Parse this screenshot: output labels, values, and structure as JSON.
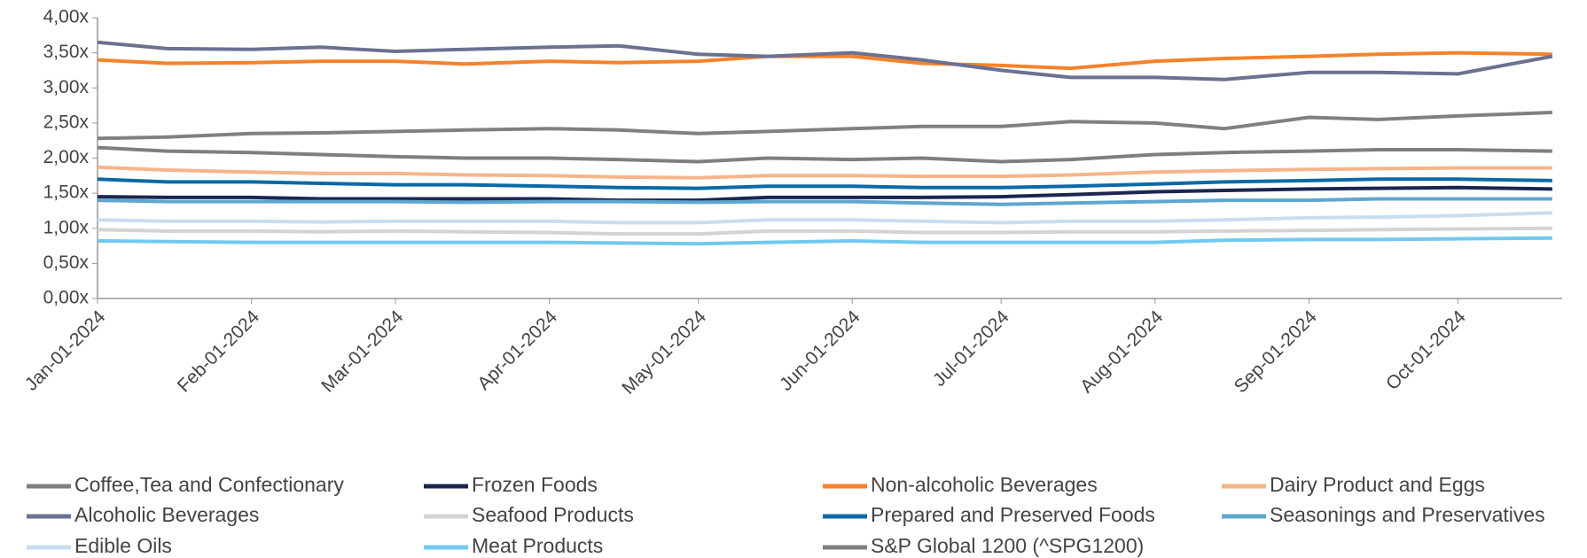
{
  "chart_data": {
    "type": "line",
    "x": [
      "2024-01-01",
      "2024-01-15",
      "2024-02-01",
      "2024-02-15",
      "2024-03-01",
      "2024-03-15",
      "2024-04-01",
      "2024-04-15",
      "2024-05-01",
      "2024-05-15",
      "2024-06-01",
      "2024-06-15",
      "2024-07-01",
      "2024-07-15",
      "2024-08-01",
      "2024-08-15",
      "2024-09-01",
      "2024-09-15",
      "2024-10-01",
      "2024-10-20"
    ],
    "series": [
      {
        "name": "Coffee,Tea and Confectionary",
        "color": "#7f7f7f",
        "values": [
          2.15,
          2.1,
          2.08,
          2.05,
          2.02,
          2.0,
          2.0,
          1.98,
          1.95,
          2.0,
          1.98,
          2.0,
          1.95,
          1.98,
          2.05,
          2.08,
          2.1,
          2.12,
          2.12,
          2.1
        ]
      },
      {
        "name": "Frozen Foods",
        "color": "#1b2650",
        "values": [
          1.45,
          1.44,
          1.44,
          1.42,
          1.42,
          1.42,
          1.42,
          1.4,
          1.4,
          1.44,
          1.44,
          1.44,
          1.45,
          1.48,
          1.52,
          1.54,
          1.56,
          1.57,
          1.58,
          1.56
        ]
      },
      {
        "name": "Non-alcoholic Beverages",
        "color": "#f5822a",
        "values": [
          3.4,
          3.35,
          3.36,
          3.38,
          3.38,
          3.34,
          3.38,
          3.36,
          3.38,
          3.45,
          3.45,
          3.35,
          3.32,
          3.28,
          3.38,
          3.42,
          3.45,
          3.48,
          3.5,
          3.48
        ]
      },
      {
        "name": " Dairy Product and Eggs",
        "color": "#f5b58a",
        "values": [
          1.87,
          1.83,
          1.8,
          1.78,
          1.78,
          1.76,
          1.75,
          1.73,
          1.72,
          1.75,
          1.75,
          1.74,
          1.74,
          1.76,
          1.8,
          1.82,
          1.84,
          1.85,
          1.86,
          1.86
        ]
      },
      {
        "name": "Alcoholic Beverages",
        "color": "#6b7190",
        "values": [
          3.65,
          3.56,
          3.55,
          3.58,
          3.52,
          3.55,
          3.58,
          3.6,
          3.48,
          3.45,
          3.5,
          3.4,
          3.25,
          3.15,
          3.15,
          3.12,
          3.22,
          3.22,
          3.2,
          3.45
        ]
      },
      {
        "name": "Seafood Products",
        "color": "#d3d3d3",
        "values": [
          0.98,
          0.96,
          0.96,
          0.95,
          0.96,
          0.95,
          0.94,
          0.92,
          0.92,
          0.96,
          0.96,
          0.94,
          0.94,
          0.95,
          0.95,
          0.96,
          0.97,
          0.98,
          0.99,
          1.0
        ]
      },
      {
        "name": "Prepared and Preserved Foods",
        "color": "#0b6aa5",
        "values": [
          1.7,
          1.66,
          1.66,
          1.64,
          1.62,
          1.62,
          1.6,
          1.58,
          1.57,
          1.6,
          1.6,
          1.58,
          1.58,
          1.6,
          1.63,
          1.66,
          1.68,
          1.7,
          1.7,
          1.68
        ]
      },
      {
        "name": "Seasonings and Preservatives",
        "color": "#5ea6cf",
        "values": [
          1.4,
          1.38,
          1.38,
          1.38,
          1.38,
          1.37,
          1.38,
          1.38,
          1.37,
          1.38,
          1.38,
          1.36,
          1.34,
          1.36,
          1.38,
          1.4,
          1.4,
          1.42,
          1.42,
          1.42
        ]
      },
      {
        "name": "Edible Oils",
        "color": "#c8deef",
        "values": [
          1.12,
          1.1,
          1.1,
          1.09,
          1.1,
          1.1,
          1.1,
          1.08,
          1.08,
          1.12,
          1.12,
          1.1,
          1.08,
          1.1,
          1.1,
          1.12,
          1.15,
          1.16,
          1.18,
          1.22
        ]
      },
      {
        "name": "Meat Products",
        "color": "#72c8f0",
        "values": [
          0.82,
          0.81,
          0.8,
          0.8,
          0.8,
          0.8,
          0.8,
          0.79,
          0.78,
          0.8,
          0.82,
          0.8,
          0.8,
          0.8,
          0.8,
          0.83,
          0.84,
          0.84,
          0.85,
          0.86
        ]
      },
      {
        "name": "S&P Global 1200 (^SPG1200)",
        "color": "#808080",
        "values": [
          2.28,
          2.3,
          2.35,
          2.36,
          2.38,
          2.4,
          2.42,
          2.4,
          2.35,
          2.38,
          2.42,
          2.45,
          2.45,
          2.52,
          2.5,
          2.42,
          2.58,
          2.55,
          2.6,
          2.65
        ]
      }
    ],
    "xlim": [
      "2024-01-01",
      "2024-10-22"
    ],
    "xticks": [
      {
        "value": "2024-01-01",
        "label": "Jan-01-2024"
      },
      {
        "value": "2024-02-01",
        "label": "Feb-01-2024"
      },
      {
        "value": "2024-03-01",
        "label": "Mar-01-2024"
      },
      {
        "value": "2024-04-01",
        "label": "Apr-01-2024"
      },
      {
        "value": "2024-05-01",
        "label": "May-01-2024"
      },
      {
        "value": "2024-06-01",
        "label": "Jun-01-2024"
      },
      {
        "value": "2024-07-01",
        "label": "Jul-01-2024"
      },
      {
        "value": "2024-08-01",
        "label": "Aug-01-2024"
      },
      {
        "value": "2024-09-01",
        "label": "Sep-01-2024"
      },
      {
        "value": "2024-10-01",
        "label": "Oct-01-2024"
      }
    ],
    "ylim": [
      0,
      4
    ],
    "yticks": [
      {
        "value": 0,
        "label": "0,00x"
      },
      {
        "value": 0.5,
        "label": "0,50x"
      },
      {
        "value": 1,
        "label": "1,00x"
      },
      {
        "value": 1.5,
        "label": "1,50x"
      },
      {
        "value": 2,
        "label": "2,00x"
      },
      {
        "value": 2.5,
        "label": "2,50x"
      },
      {
        "value": 3,
        "label": "3,00x"
      },
      {
        "value": 3.5,
        "label": "3,50x"
      },
      {
        "value": 4,
        "label": "4,00x"
      }
    ]
  }
}
